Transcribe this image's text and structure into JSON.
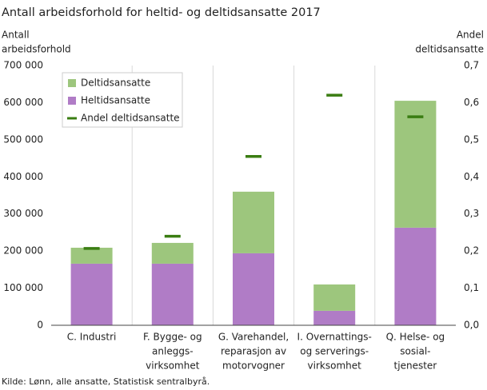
{
  "chart_data": {
    "type": "stacked_bar_with_markers",
    "title": "Antall arbeidsforhold for heltid- og deltidsansatte 2017",
    "y_label": [
      "Antall",
      "arbeidsforhold"
    ],
    "y2_label": [
      "Andel",
      "deltidsansatte"
    ],
    "source": "Kilde: Lønn, alle ansatte, Statistisk sentralbyrå.",
    "categories": [
      [
        "C. Industri"
      ],
      [
        "F. Bygge- og",
        "anleggs-",
        "virksomhet"
      ],
      [
        "G. Varehandel,",
        "reparasjon av",
        "motorvogner"
      ],
      [
        "I. Overnattings-",
        "og serverings-",
        "virksomhet"
      ],
      [
        "Q. Helse- og",
        "sosial-",
        "tjenester"
      ]
    ],
    "series": [
      {
        "name": "Deltidsansatte",
        "color": "#9dc67d",
        "values": [
          43000,
          56000,
          166000,
          71000,
          342000
        ]
      },
      {
        "name": "Heltidsansatte",
        "color": "#b07cc6",
        "values": [
          166000,
          166000,
          194000,
          39000,
          263000
        ]
      },
      {
        "name": "Andel deltidsansatte",
        "color": "#3a7d12",
        "axis": "y2",
        "values": [
          0.207,
          0.24,
          0.455,
          0.62,
          0.562
        ]
      }
    ],
    "ylim": [
      0,
      700000
    ],
    "yticks": [
      0,
      {
        "value": 100000,
        "label": "100 000"
      },
      {
        "value": 200000,
        "label": "200 000"
      },
      {
        "value": 300000,
        "label": "300 000"
      },
      {
        "value": 400000,
        "label": "400 000"
      },
      {
        "value": 500000,
        "label": "500 000"
      },
      {
        "value": 600000,
        "label": "600 000"
      },
      {
        "value": 700000,
        "label": "700 000"
      }
    ],
    "y2lim": [
      0,
      0.7
    ],
    "y2ticks": [
      {
        "value": 0,
        "label": "0,0"
      },
      {
        "value": 0.1,
        "label": "0,1"
      },
      {
        "value": 0.2,
        "label": "0,2"
      },
      {
        "value": 0.3,
        "label": "0,3"
      },
      {
        "value": 0.4,
        "label": "0,4"
      },
      {
        "value": 0.5,
        "label": "0,5"
      },
      {
        "value": 0.6,
        "label": "0,6"
      },
      {
        "value": 0.7,
        "label": "0,7"
      }
    ],
    "legend": "top-left"
  }
}
